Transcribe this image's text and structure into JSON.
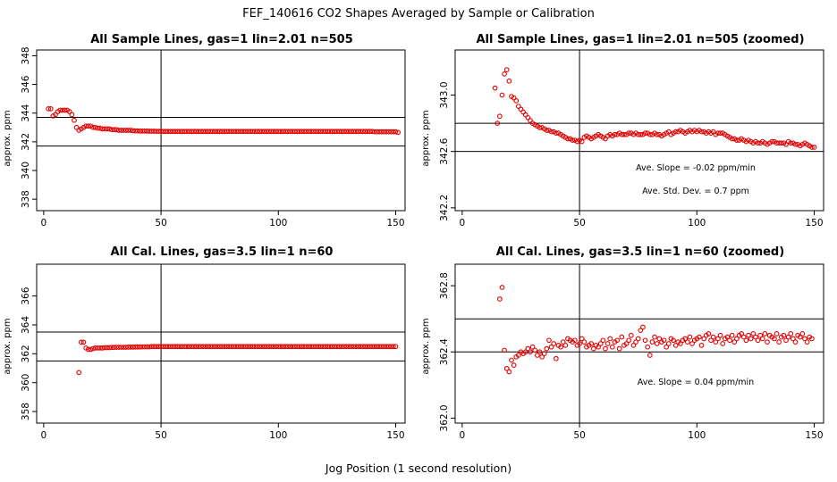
{
  "figure": {
    "title": "FEF_140616  CO2 Shapes Averaged by Sample or Calibration",
    "xlabel": "Jog Position (1 second resolution)"
  },
  "chart_data": [
    {
      "type": "scatter",
      "title": "All Sample Lines, gas=1 lin=2.01 n=505",
      "ylabel": "approx. ppm",
      "xlim": [
        -3,
        154
      ],
      "ylim": [
        337.2,
        348.4
      ],
      "xticks": [
        "0",
        "50",
        "100",
        "150"
      ],
      "yticks": [
        "338",
        "340",
        "342",
        "344",
        "346",
        "348"
      ],
      "hlines": [
        341.7,
        343.7
      ],
      "vline": 50,
      "annotations": [],
      "x_start": 2,
      "y": [
        344.3,
        344.3,
        343.8,
        343.9,
        344.1,
        344.2,
        344.2,
        344.2,
        344.2,
        344.1,
        343.9,
        343.5,
        343.0,
        342.8,
        342.9,
        343.0,
        343.1,
        343.1,
        343.1,
        343.0,
        343.0,
        342.95,
        342.95,
        342.9,
        342.9,
        342.9,
        342.9,
        342.85,
        342.85,
        342.85,
        342.8,
        342.8,
        342.8,
        342.8,
        342.8,
        342.8,
        342.78,
        342.76,
        342.76,
        342.75,
        342.75,
        342.75,
        342.75,
        342.74,
        342.74,
        342.74,
        342.73,
        342.73,
        342.73,
        342.72,
        342.72,
        342.72,
        342.72,
        342.72,
        342.72,
        342.72,
        342.72,
        342.72,
        342.72,
        342.72,
        342.72,
        342.72,
        342.72,
        342.72,
        342.72,
        342.72,
        342.72,
        342.72,
        342.72,
        342.72,
        342.72,
        342.72,
        342.72,
        342.72,
        342.72,
        342.72,
        342.72,
        342.72,
        342.72,
        342.72,
        342.72,
        342.72,
        342.72,
        342.72,
        342.72,
        342.72,
        342.72,
        342.72,
        342.72,
        342.72,
        342.72,
        342.72,
        342.72,
        342.72,
        342.72,
        342.72,
        342.72,
        342.72,
        342.72,
        342.72,
        342.72,
        342.72,
        342.72,
        342.72,
        342.72,
        342.72,
        342.72,
        342.72,
        342.72,
        342.72,
        342.72,
        342.72,
        342.72,
        342.72,
        342.72,
        342.72,
        342.72,
        342.72,
        342.72,
        342.72,
        342.72,
        342.72,
        342.72,
        342.72,
        342.72,
        342.72,
        342.72,
        342.72,
        342.72,
        342.72,
        342.72,
        342.72,
        342.72,
        342.72,
        342.72,
        342.72,
        342.72,
        342.72,
        342.72,
        342.7,
        342.7,
        342.7,
        342.7,
        342.7,
        342.7,
        342.7,
        342.7,
        342.7,
        342.7,
        342.65
      ]
    },
    {
      "type": "scatter",
      "title": "All Sample Lines, gas=1 lin=2.01 n=505 (zoomed)",
      "ylabel": "approx. ppm",
      "xlim": [
        -3,
        154
      ],
      "ylim": [
        342.18,
        343.32
      ],
      "xticks": [
        "0",
        "50",
        "100",
        "150"
      ],
      "yticks": [
        "342.2",
        "342.6",
        "343.0"
      ],
      "hlines": [
        342.6,
        342.8
      ],
      "vline": 50,
      "annotations": [
        "Ave. Slope =  -0.02  ppm/min",
        "Ave. Std. Dev. =  0.7  ppm"
      ],
      "x_start": 14,
      "y": [
        343.05,
        342.8,
        342.85,
        343.0,
        343.15,
        343.18,
        343.1,
        342.99,
        342.98,
        342.96,
        342.92,
        342.9,
        342.88,
        342.86,
        342.84,
        342.82,
        342.8,
        342.79,
        342.78,
        342.77,
        342.77,
        342.76,
        342.75,
        342.75,
        342.74,
        342.74,
        342.73,
        342.73,
        342.72,
        342.71,
        342.7,
        342.69,
        342.69,
        342.68,
        342.68,
        342.67,
        342.68,
        342.67,
        342.7,
        342.71,
        342.7,
        342.69,
        342.7,
        342.71,
        342.72,
        342.71,
        342.7,
        342.69,
        342.71,
        342.72,
        342.71,
        342.72,
        342.72,
        342.73,
        342.72,
        342.72,
        342.72,
        342.73,
        342.73,
        342.72,
        342.73,
        342.72,
        342.72,
        342.72,
        342.73,
        342.73,
        342.72,
        342.72,
        342.73,
        342.72,
        342.72,
        342.71,
        342.72,
        342.73,
        342.74,
        342.72,
        342.73,
        342.74,
        342.74,
        342.75,
        342.74,
        342.73,
        342.74,
        342.75,
        342.74,
        342.75,
        342.74,
        342.75,
        342.74,
        342.74,
        342.73,
        342.74,
        342.73,
        342.74,
        342.72,
        342.73,
        342.73,
        342.73,
        342.72,
        342.71,
        342.7,
        342.69,
        342.69,
        342.68,
        342.68,
        342.69,
        342.68,
        342.67,
        342.68,
        342.67,
        342.66,
        342.67,
        342.66,
        342.66,
        342.67,
        342.66,
        342.65,
        342.66,
        342.67,
        342.67,
        342.66,
        342.66,
        342.66,
        342.66,
        342.65,
        342.67,
        342.66,
        342.66,
        342.65,
        342.65,
        342.64,
        342.65,
        342.66,
        342.65,
        342.64,
        342.63,
        342.63
      ]
    },
    {
      "type": "scatter",
      "title": "All Cal. Lines, gas=3.5 lin=1 n=60",
      "ylabel": "approx. ppm",
      "xlim": [
        -3,
        154
      ],
      "ylim": [
        357.2,
        368.2
      ],
      "xticks": [
        "0",
        "50",
        "100",
        "150"
      ],
      "yticks": [
        "358",
        "360",
        "362",
        "364",
        "366"
      ],
      "hlines": [
        361.5,
        363.5
      ],
      "vline": 50,
      "annotations": [],
      "x_start": 15,
      "y": [
        360.7,
        362.8,
        362.8,
        362.4,
        362.3,
        362.3,
        362.35,
        362.4,
        362.4,
        362.4,
        362.4,
        362.42,
        362.42,
        362.42,
        362.44,
        362.44,
        362.45,
        362.45,
        362.45,
        362.45,
        362.45,
        362.46,
        362.46,
        362.46,
        362.47,
        362.47,
        362.47,
        362.48,
        362.48,
        362.48,
        362.48,
        362.5,
        362.5,
        362.5,
        362.5,
        362.5,
        362.5,
        362.5,
        362.5,
        362.5,
        362.5,
        362.5,
        362.5,
        362.5,
        362.5,
        362.5,
        362.5,
        362.5,
        362.5,
        362.5,
        362.5,
        362.5,
        362.5,
        362.5,
        362.5,
        362.5,
        362.5,
        362.5,
        362.5,
        362.5,
        362.5,
        362.5,
        362.5,
        362.5,
        362.5,
        362.5,
        362.5,
        362.5,
        362.5,
        362.5,
        362.5,
        362.5,
        362.5,
        362.5,
        362.5,
        362.5,
        362.5,
        362.5,
        362.5,
        362.5,
        362.5,
        362.5,
        362.5,
        362.5,
        362.5,
        362.5,
        362.5,
        362.5,
        362.5,
        362.5,
        362.5,
        362.5,
        362.5,
        362.5,
        362.5,
        362.5,
        362.5,
        362.5,
        362.5,
        362.5,
        362.5,
        362.5,
        362.5,
        362.5,
        362.5,
        362.5,
        362.5,
        362.5,
        362.5,
        362.5,
        362.5,
        362.5,
        362.5,
        362.5,
        362.5,
        362.5,
        362.5,
        362.5,
        362.5,
        362.5,
        362.5,
        362.5,
        362.5,
        362.5,
        362.5,
        362.5,
        362.5,
        362.5,
        362.5,
        362.5,
        362.5,
        362.5,
        362.5,
        362.5,
        362.5,
        362.5
      ]
    },
    {
      "type": "scatter",
      "title": "All Cal. Lines, gas=3.5 lin=1 n=60 (zoomed)",
      "ylabel": "approx. ppm",
      "xlim": [
        -3,
        154
      ],
      "ylim": [
        361.97,
        362.93
      ],
      "xticks": [
        "0",
        "50",
        "100",
        "150"
      ],
      "yticks": [
        "362.0",
        "362.4",
        "362.8"
      ],
      "hlines": [
        362.4,
        362.6
      ],
      "vline": 50,
      "annotations": [
        "Ave. Slope =  0.04  ppm/min"
      ],
      "x_start": 16,
      "y": [
        362.72,
        362.79,
        362.41,
        362.3,
        362.28,
        362.35,
        362.32,
        362.37,
        362.38,
        362.4,
        362.39,
        362.4,
        362.42,
        362.4,
        362.43,
        362.41,
        362.38,
        362.4,
        362.37,
        362.39,
        362.42,
        362.47,
        362.43,
        362.45,
        362.36,
        362.44,
        362.43,
        362.46,
        362.44,
        362.48,
        362.47,
        362.46,
        362.47,
        362.44,
        362.45,
        362.48,
        362.46,
        362.43,
        362.44,
        362.45,
        362.42,
        362.44,
        362.43,
        362.45,
        362.47,
        362.42,
        362.45,
        362.48,
        362.43,
        362.46,
        362.47,
        362.42,
        362.49,
        362.44,
        362.45,
        362.47,
        362.5,
        362.44,
        362.46,
        362.48,
        362.53,
        362.55,
        362.47,
        362.43,
        362.38,
        362.46,
        362.49,
        362.45,
        362.48,
        362.46,
        362.47,
        362.43,
        362.45,
        362.48,
        362.47,
        362.44,
        362.46,
        362.45,
        362.47,
        362.48,
        362.46,
        362.49,
        362.45,
        362.47,
        362.48,
        362.49,
        362.44,
        362.48,
        362.5,
        362.51,
        362.47,
        362.49,
        362.46,
        362.48,
        362.5,
        362.45,
        362.48,
        362.49,
        362.47,
        362.5,
        362.46,
        362.48,
        362.5,
        362.51,
        362.49,
        362.47,
        362.5,
        362.48,
        362.51,
        362.49,
        362.47,
        362.5,
        362.48,
        362.51,
        362.46,
        362.5,
        362.49,
        362.48,
        362.51,
        362.46,
        362.49,
        362.5,
        362.47,
        362.49,
        362.51,
        362.48,
        362.46,
        362.5,
        362.49,
        362.51,
        362.48,
        362.46,
        362.49,
        362.48
      ]
    }
  ]
}
